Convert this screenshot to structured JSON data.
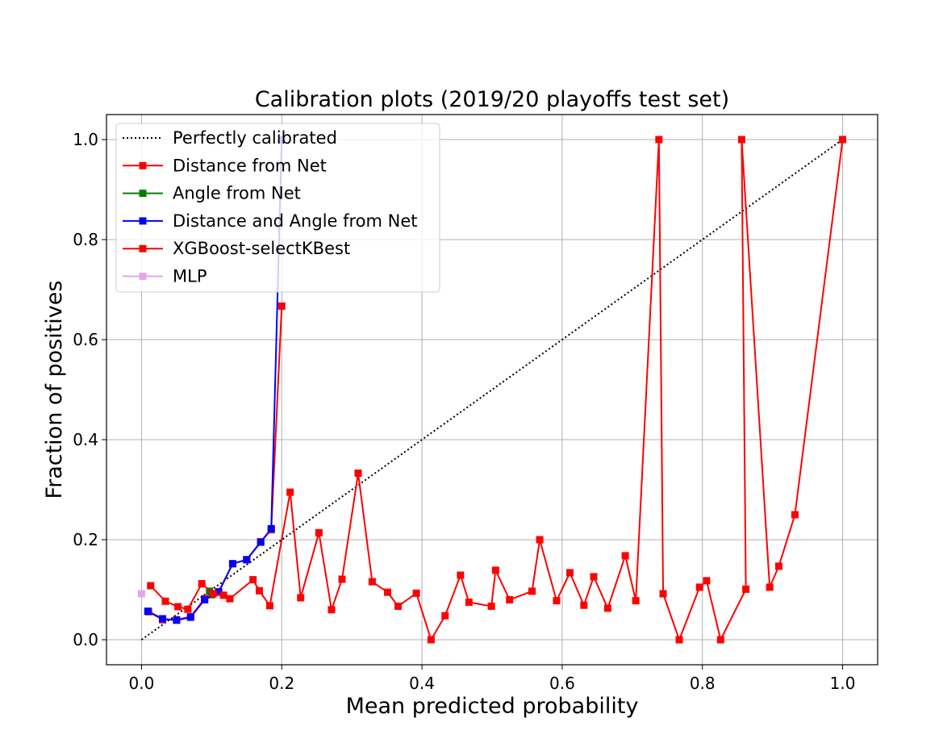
{
  "chart_data": {
    "type": "line",
    "title": "Calibration plots (2019/20 playoffs test set)",
    "xlabel": "Mean predicted probability",
    "ylabel": "Fraction of positives",
    "xlim": [
      -0.05,
      1.05
    ],
    "ylim": [
      -0.05,
      1.05
    ],
    "xticks": [
      "0.0",
      "0.2",
      "0.4",
      "0.6",
      "0.8",
      "1.0"
    ],
    "yticks": [
      "0.0",
      "0.2",
      "0.4",
      "0.6",
      "0.8",
      "1.0"
    ],
    "grid": true,
    "legend_position": "upper-left",
    "series": [
      {
        "name": "Perfectly calibrated",
        "color": "#000000",
        "style": "dotted",
        "marker": "none",
        "x": [
          0,
          1
        ],
        "y": [
          0,
          1
        ]
      },
      {
        "name": "Distance from Net",
        "color": "#ff0000",
        "style": "solid",
        "marker": "square",
        "x": [
          0.01,
          0.03,
          0.05,
          0.07,
          0.09,
          0.11,
          0.13,
          0.15,
          0.17,
          0.185,
          0.2
        ],
        "y": [
          0.056,
          0.04,
          0.04,
          0.046,
          0.082,
          0.096,
          0.152,
          0.16,
          0.196,
          0.22,
          0.667
        ]
      },
      {
        "name": "Angle from Net",
        "color": "#008000",
        "style": "solid",
        "marker": "square",
        "x": [
          0.097,
          0.1
        ],
        "y": [
          0.097,
          0.09
        ]
      },
      {
        "name": "Distance and Angle from Net",
        "color": "#0000ff",
        "style": "solid",
        "marker": "square",
        "x": [
          0.009,
          0.03,
          0.05,
          0.07,
          0.09,
          0.11,
          0.13,
          0.15,
          0.17,
          0.185,
          0.2
        ],
        "y": [
          0.057,
          0.042,
          0.039,
          0.045,
          0.08,
          0.095,
          0.152,
          0.16,
          0.195,
          0.222,
          1.0
        ]
      },
      {
        "name": "XGBoost-selectKBest",
        "color": "#ff0000",
        "style": "solid",
        "marker": "square",
        "x": [
          0.013,
          0.034,
          0.052,
          0.066,
          0.086,
          0.102,
          0.117,
          0.126,
          0.159,
          0.168,
          0.183,
          0.212,
          0.227,
          0.253,
          0.271,
          0.286,
          0.309,
          0.329,
          0.351,
          0.366,
          0.392,
          0.413,
          0.433,
          0.455,
          0.467,
          0.499,
          0.505,
          0.525,
          0.557,
          0.568,
          0.592,
          0.611,
          0.631,
          0.645,
          0.665,
          0.69,
          0.705,
          0.738,
          0.744,
          0.767,
          0.796,
          0.806,
          0.826,
          0.862,
          0.856,
          0.896,
          0.909,
          0.932,
          1.0
        ],
        "y": [
          0.108,
          0.077,
          0.066,
          0.061,
          0.112,
          0.092,
          0.089,
          0.082,
          0.12,
          0.098,
          0.068,
          0.295,
          0.084,
          0.214,
          0.06,
          0.121,
          0.333,
          0.116,
          0.095,
          0.067,
          0.093,
          0.0,
          0.048,
          0.129,
          0.075,
          0.067,
          0.139,
          0.08,
          0.097,
          0.2,
          0.078,
          0.134,
          0.069,
          0.126,
          0.063,
          0.168,
          0.078,
          1.0,
          0.092,
          0.0,
          0.105,
          0.118,
          0.0,
          0.101,
          1.0,
          0.105,
          0.147,
          0.25,
          1.0
        ]
      },
      {
        "name": "MLP",
        "color": "#e6a6e6",
        "style": "solid",
        "marker": "square",
        "x": [
          0.0
        ],
        "y": [
          0.092
        ]
      }
    ]
  }
}
